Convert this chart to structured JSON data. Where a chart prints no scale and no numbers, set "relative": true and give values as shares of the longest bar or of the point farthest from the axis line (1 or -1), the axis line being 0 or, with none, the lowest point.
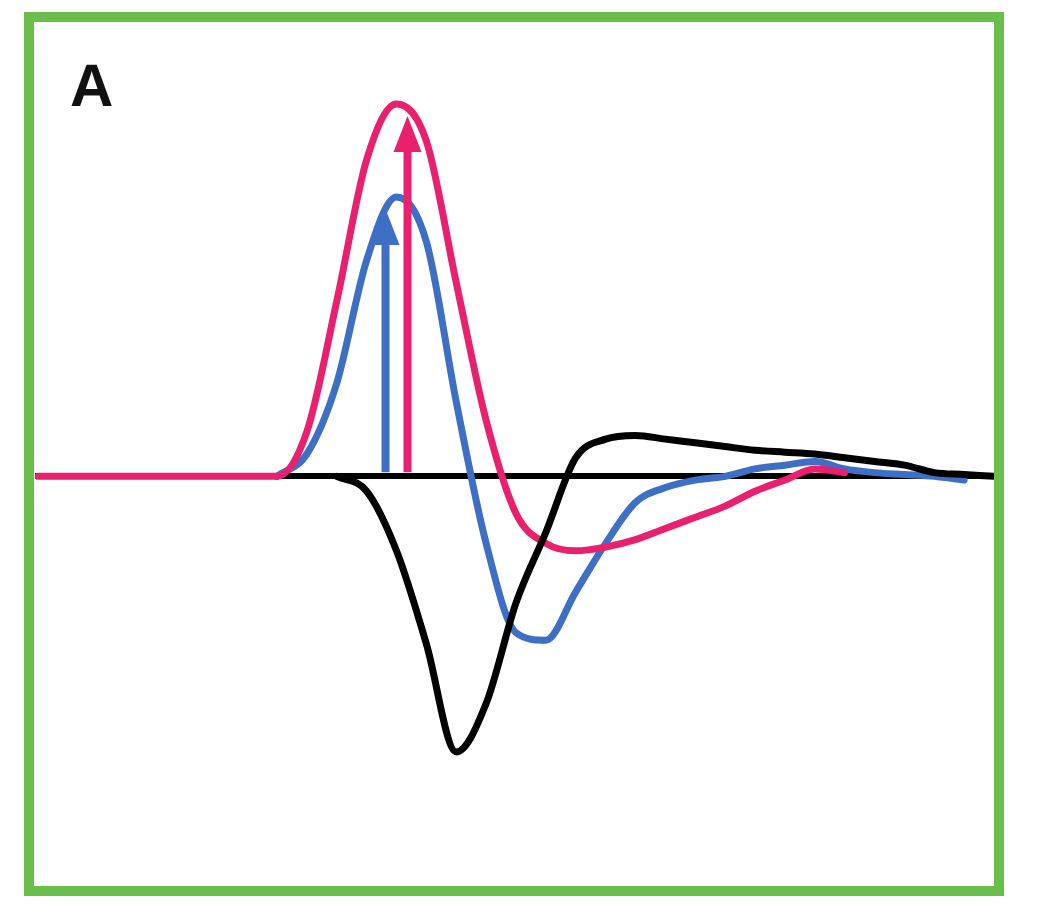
{
  "chart_data": {
    "type": "line",
    "title": "A",
    "relative": true,
    "categories": [
      null,
      null,
      null,
      null,
      null,
      null,
      null,
      null,
      null,
      null,
      null,
      null,
      null,
      null,
      null,
      null,
      null,
      null,
      null,
      null,
      null,
      null,
      null,
      null,
      null,
      null,
      null,
      null,
      null,
      null,
      null,
      null,
      null
    ],
    "series": [
      {
        "color": "#000000",
        "values": [
          null,
          null,
          null,
          null,
          null,
          null,
          null,
          null,
          null,
          null,
          0,
          -0.04,
          -0.2,
          -0.45,
          -0.74,
          -0.61,
          -0.34,
          -0.15,
          0.05,
          0.1,
          0.11,
          0.1,
          0.09,
          0.08,
          0.07,
          0.065,
          0.06,
          0.05,
          0.04,
          0.03,
          0.01,
          0.005,
          0
        ]
      },
      {
        "color": "#e8206e",
        "values": [
          0,
          0,
          0,
          0,
          0,
          0,
          0,
          0,
          0,
          0.12,
          0.47,
          0.85,
          1,
          0.9,
          0.52,
          0.15,
          -0.1,
          -0.18,
          -0.2,
          -0.19,
          -0.17,
          -0.14,
          -0.11,
          -0.08,
          -0.04,
          -0.01,
          0.02,
          0.01,
          null,
          null,
          null,
          null,
          null
        ]
      },
      {
        "color": "#3d6fc4",
        "values": [
          null,
          null,
          null,
          null,
          null,
          null,
          null,
          null,
          0,
          0.06,
          0.25,
          0.58,
          0.75,
          0.63,
          0.2,
          -0.18,
          -0.42,
          -0.44,
          -0.31,
          -0.18,
          -0.07,
          -0.03,
          -0.01,
          0,
          0.02,
          0.03,
          0.04,
          0.02,
          0.01,
          0.005,
          0,
          -0.01,
          null
        ]
      }
    ]
  }
}
